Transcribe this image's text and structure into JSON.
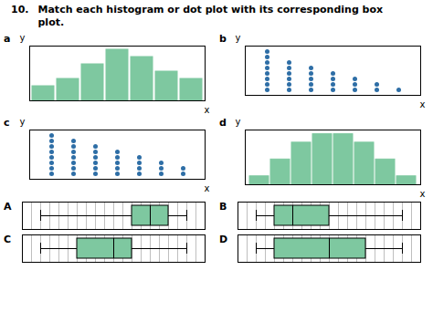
{
  "title": "10.",
  "subtitle": "Match each histogram or dot plot with its corresponding box\nplot.",
  "chart_data": [
    {
      "type": "bar",
      "title": "a",
      "categories": [
        null,
        null,
        null,
        null,
        null,
        null,
        null
      ],
      "values": [
        2,
        3,
        5,
        7,
        6,
        4,
        3
      ],
      "color": "#7ec8a0",
      "ylim": [
        0,
        7.5
      ],
      "xlabel": "x",
      "ylabel": "y",
      "tick_labels": false
    },
    {
      "type": "dot",
      "title": "b",
      "x": [
        1,
        2,
        3,
        4,
        5,
        6,
        7
      ],
      "values": [
        8,
        6,
        5,
        4,
        3,
        2,
        1
      ],
      "color": "#2e6ea6",
      "xlim": [
        0,
        8
      ],
      "ylim": [
        0,
        9
      ],
      "xlabel": "x",
      "ylabel": "y",
      "tick_labels": false
    },
    {
      "type": "dot",
      "title": "c",
      "x": [
        1,
        2,
        3,
        4,
        5,
        6,
        7
      ],
      "values": [
        8,
        7,
        6,
        5,
        4,
        3,
        2
      ],
      "color": "#2e6ea6",
      "xlim": [
        0,
        8
      ],
      "ylim": [
        0,
        9
      ],
      "xlabel": "x",
      "ylabel": "y",
      "tick_labels": false
    },
    {
      "type": "bar",
      "title": "d",
      "categories": [
        null,
        null,
        null,
        null,
        null,
        null,
        null,
        null
      ],
      "values": [
        1,
        3,
        5,
        6,
        6,
        5,
        3,
        1
      ],
      "color": "#7ec8a0",
      "ylim": [
        0,
        6.5
      ],
      "xlabel": "x",
      "ylabel": "y",
      "tick_labels": false
    },
    {
      "type": "box",
      "title": "A",
      "min": 1,
      "q1": 6,
      "median": 7,
      "q3": 8,
      "max": 9,
      "color": "#7ec8a0",
      "xlim": [
        0,
        10
      ],
      "xticks": [
        0,
        0.5,
        1,
        1.5,
        2,
        2.5,
        3,
        3.5,
        4,
        4.5,
        5,
        5.5,
        6,
        6.5,
        7,
        7.5,
        8,
        8.5,
        9,
        9.5,
        10
      ],
      "grid": true,
      "tick_labels": false
    },
    {
      "type": "box",
      "title": "B",
      "min": 1,
      "q1": 2,
      "median": 3,
      "q3": 5,
      "max": 9,
      "color": "#7ec8a0",
      "xlim": [
        0,
        10
      ],
      "xticks": [
        0,
        0.5,
        1,
        1.5,
        2,
        2.5,
        3,
        3.5,
        4,
        4.5,
        5,
        5.5,
        6,
        6.5,
        7,
        7.5,
        8,
        8.5,
        9,
        9.5,
        10
      ],
      "grid": true,
      "tick_labels": false
    },
    {
      "type": "box",
      "title": "C",
      "min": 1,
      "q1": 3,
      "median": 5,
      "q3": 6,
      "max": 9,
      "color": "#7ec8a0",
      "xlim": [
        0,
        10
      ],
      "xticks": [
        0,
        0.5,
        1,
        1.5,
        2,
        2.5,
        3,
        3.5,
        4,
        4.5,
        5,
        5.5,
        6,
        6.5,
        7,
        7.5,
        8,
        8.5,
        9,
        9.5,
        10
      ],
      "grid": true,
      "tick_labels": false
    },
    {
      "type": "box",
      "title": "D",
      "min": 1,
      "q1": 2,
      "median": 5,
      "q3": 7,
      "max": 9,
      "color": "#7ec8a0",
      "xlim": [
        0,
        10
      ],
      "xticks": [
        0,
        0.5,
        1,
        1.5,
        2,
        2.5,
        3,
        3.5,
        4,
        4.5,
        5,
        5.5,
        6,
        6.5,
        7,
        7.5,
        8,
        8.5,
        9,
        9.5,
        10
      ],
      "grid": true,
      "tick_labels": false
    }
  ]
}
